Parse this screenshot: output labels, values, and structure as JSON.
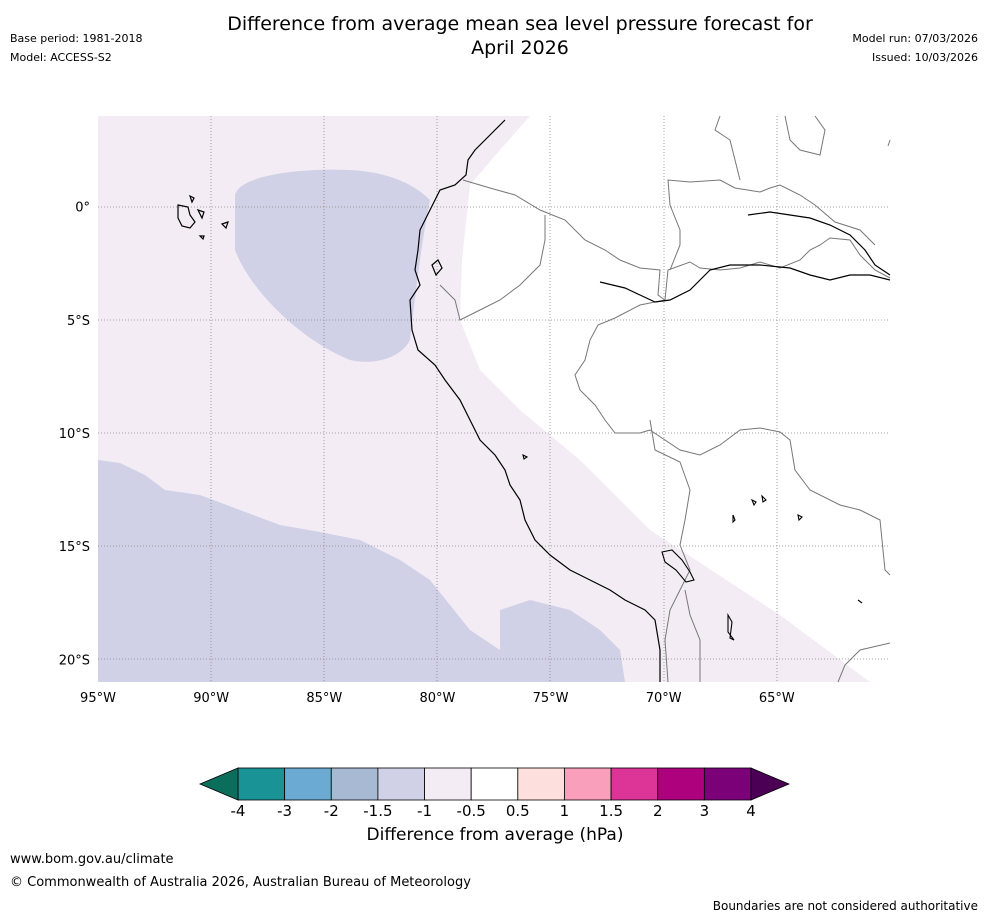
{
  "header": {
    "title_line1": "Difference from average mean sea level pressure forecast for",
    "title_line2": "April 2026",
    "base_period": "Base period: 1981-2018",
    "model": "Model: ACCESS-S2",
    "model_run": "Model run: 07/03/2026",
    "issued": "Issued: 10/03/2026"
  },
  "map": {
    "lon_range": [
      -95,
      -60
    ],
    "lat_range": [
      -21,
      4
    ],
    "lon_ticks": [
      "95°W",
      "90°W",
      "85°W",
      "80°W",
      "75°W",
      "70°W",
      "65°W"
    ],
    "lat_ticks": [
      "0°",
      "5°S",
      "10°S",
      "15°S",
      "20°S"
    ],
    "regions": [
      {
        "name": "anomaly -1.5 to -1 hPa",
        "color": "#d0d1e6"
      },
      {
        "name": "anomaly -1 to -0.5 hPa",
        "color": "#f3ecf5"
      },
      {
        "name": "anomaly -0.5 to 0.5 hPa",
        "color": "#ffffff"
      }
    ]
  },
  "colorbar": {
    "title": "Difference from average (hPa)",
    "tick_labels": [
      "-4",
      "-3",
      "-2",
      "-1.5",
      "-1",
      "-0.5",
      "0.5",
      "1",
      "1.5",
      "2",
      "3",
      "4"
    ],
    "low_extend_color": "#0b6e5c",
    "high_extend_color": "#4b0055",
    "bin_colors": [
      "#1a9396",
      "#6aaad3",
      "#a8b9d4",
      "#d0d1e6",
      "#f3ecf5",
      "#ffffff",
      "#fde0dd",
      "#f99fbb",
      "#dd3497",
      "#ae017e",
      "#7a0177"
    ]
  },
  "footer": {
    "url": "www.bom.gov.au/climate",
    "copyright": "© Commonwealth of Australia 2026, Australian Bureau of Meteorology",
    "note": "Boundaries are not considered authoritative"
  }
}
